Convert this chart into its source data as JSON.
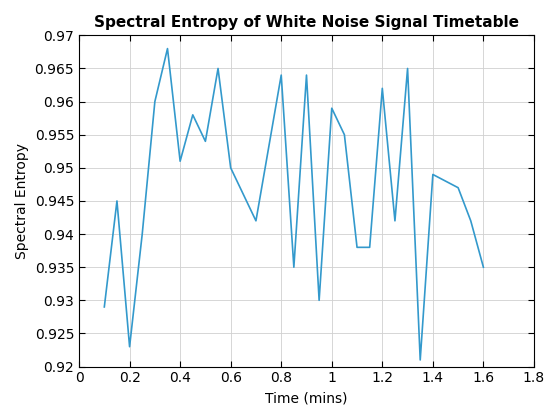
{
  "x": [
    0.1,
    0.15,
    0.2,
    0.25,
    0.3,
    0.35,
    0.4,
    0.45,
    0.5,
    0.55,
    0.6,
    0.7,
    0.8,
    0.85,
    0.9,
    0.95,
    1.0,
    1.05,
    1.1,
    1.15,
    1.2,
    1.25,
    1.3,
    1.35,
    1.4,
    1.5,
    1.55,
    1.6
  ],
  "y": [
    0.929,
    0.945,
    0.923,
    0.94,
    0.96,
    0.968,
    0.951,
    0.958,
    0.954,
    0.965,
    0.95,
    0.942,
    0.964,
    0.935,
    0.964,
    0.93,
    0.959,
    0.955,
    0.938,
    0.938,
    0.962,
    0.942,
    0.965,
    0.921,
    0.949,
    0.947,
    0.942,
    0.935
  ],
  "title": "Spectral Entropy of White Noise Signal Timetable",
  "xlabel": "Time (mins)",
  "ylabel": "Spectral Entropy",
  "xlim": [
    0,
    1.8
  ],
  "ylim": [
    0.92,
    0.97
  ],
  "line_color": "#3399CC",
  "line_width": 1.2,
  "xticks": [
    0,
    0.2,
    0.4,
    0.6,
    0.8,
    1.0,
    1.2,
    1.4,
    1.6,
    1.8
  ],
  "xtick_labels": [
    "0",
    "0.2",
    "0.4",
    "0.6",
    "0.8",
    "1",
    "1.2",
    "1.4",
    "1.6",
    "1.8"
  ],
  "yticks": [
    0.92,
    0.925,
    0.93,
    0.935,
    0.94,
    0.945,
    0.95,
    0.955,
    0.96,
    0.965,
    0.97
  ],
  "ytick_labels": [
    "0.92",
    "0.925",
    "0.93",
    "0.935",
    "0.94",
    "0.945",
    "0.95",
    "0.955",
    "0.96",
    "0.965",
    "0.97"
  ],
  "title_fontsize": 11,
  "label_fontsize": 10,
  "tick_fontsize": 10
}
